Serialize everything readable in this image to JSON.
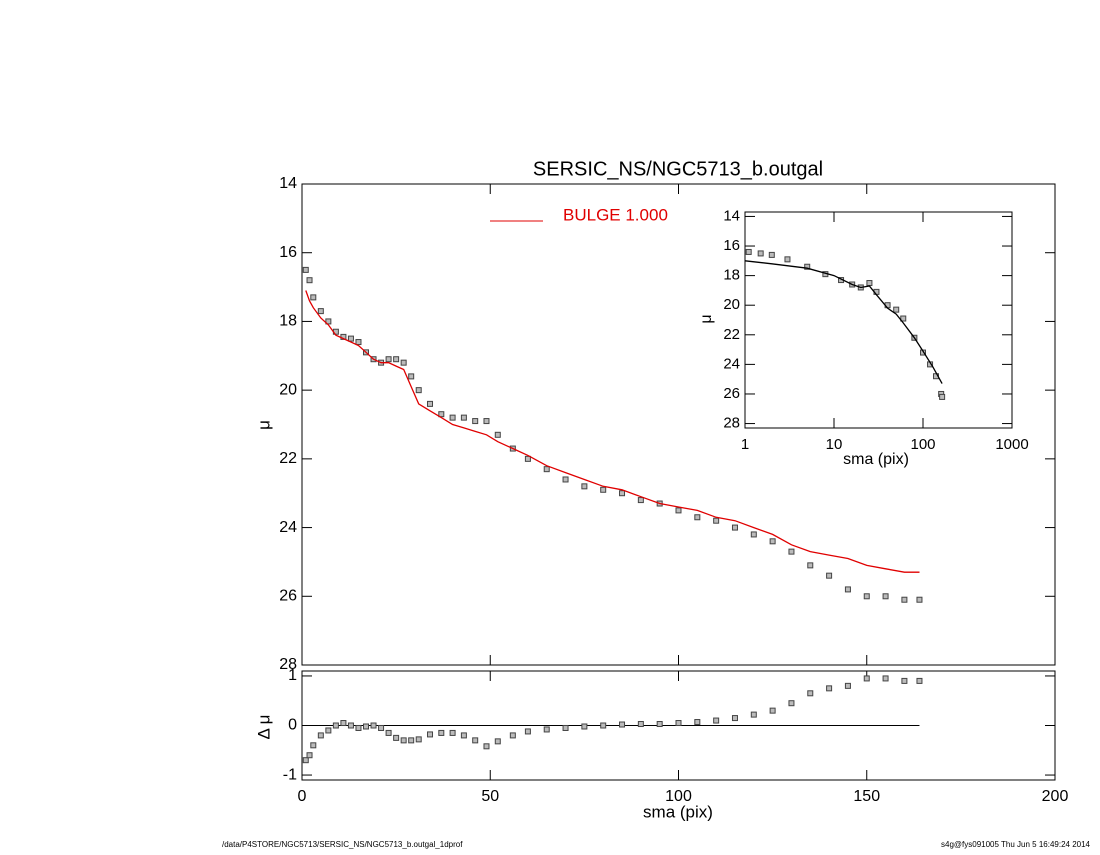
{
  "chart_data": [
    {
      "type": "line",
      "title": "SERSIC_NS/NGC5713_b.outgal",
      "y_label": "μ",
      "x": [
        1,
        2,
        3,
        5,
        7,
        9,
        11,
        13,
        15,
        17,
        19,
        21,
        23,
        25,
        27,
        29,
        31,
        34,
        37,
        40,
        43,
        46,
        49,
        52,
        56,
        60,
        65,
        70,
        75,
        80,
        85,
        90,
        95,
        100,
        105,
        110,
        115,
        120,
        125,
        130,
        135,
        140,
        145,
        150,
        155,
        160,
        164
      ],
      "series": [
        {
          "color": "#808080",
          "marker": "square",
          "values": [
            16.5,
            16.8,
            17.3,
            17.7,
            18.0,
            18.3,
            18.45,
            18.5,
            18.6,
            18.9,
            19.1,
            19.2,
            19.1,
            19.1,
            19.2,
            19.6,
            20.0,
            20.4,
            20.7,
            20.8,
            20.8,
            20.9,
            20.9,
            21.3,
            21.7,
            22.0,
            22.3,
            22.6,
            22.8,
            22.9,
            23.0,
            23.2,
            23.3,
            23.5,
            23.7,
            23.8,
            24.0,
            24.2,
            24.4,
            24.7,
            25.1,
            25.4,
            25.8,
            26.0,
            26.0,
            26.1,
            26.1
          ]
        },
        {
          "name": "BULGE  1.000",
          "color": "#e00000",
          "values": [
            17.1,
            17.4,
            17.6,
            17.9,
            18.1,
            18.4,
            18.5,
            18.6,
            18.7,
            18.9,
            19.1,
            19.2,
            19.2,
            19.3,
            19.4,
            19.9,
            20.4,
            20.6,
            20.8,
            21.0,
            21.1,
            21.2,
            21.3,
            21.5,
            21.7,
            21.9,
            22.2,
            22.4,
            22.6,
            22.8,
            22.9,
            23.1,
            23.3,
            23.4,
            23.5,
            23.7,
            23.8,
            24.0,
            24.2,
            24.5,
            24.7,
            24.8,
            24.9,
            25.1,
            25.2,
            25.3,
            25.3
          ]
        }
      ],
      "xlim": [
        0,
        200
      ],
      "ylim": [
        28,
        14
      ],
      "yticks": [
        14,
        16,
        18,
        20,
        22,
        24,
        26,
        28
      ]
    },
    {
      "type": "scatter",
      "y_label": "Δ μ",
      "x_label": "sma (pix)",
      "x": [
        1,
        2,
        3,
        5,
        7,
        9,
        11,
        13,
        15,
        17,
        19,
        21,
        23,
        25,
        27,
        29,
        31,
        34,
        37,
        40,
        43,
        46,
        49,
        52,
        56,
        60,
        65,
        70,
        75,
        80,
        85,
        90,
        95,
        100,
        105,
        110,
        115,
        120,
        125,
        130,
        135,
        140,
        145,
        150,
        155,
        160,
        164
      ],
      "series": [
        {
          "color": "#808080",
          "marker": "square",
          "values": [
            -0.7,
            -0.6,
            -0.4,
            -0.2,
            -0.1,
            0,
            0.05,
            0,
            -0.05,
            -0.02,
            0,
            -0.05,
            -0.15,
            -0.25,
            -0.3,
            -0.3,
            -0.28,
            -0.18,
            -0.15,
            -0.15,
            -0.2,
            -0.3,
            -0.42,
            -0.32,
            -0.2,
            -0.12,
            -0.08,
            -0.05,
            -0.02,
            0,
            0.02,
            0.03,
            0.03,
            0.05,
            0.07,
            0.1,
            0.15,
            0.22,
            0.3,
            0.45,
            0.65,
            0.75,
            0.8,
            0.95,
            0.95,
            0.9,
            0.9
          ]
        }
      ],
      "xlim": [
        0,
        200
      ],
      "ylim": [
        -1.1,
        1.1
      ],
      "xticks": [
        0,
        50,
        100,
        150,
        200
      ],
      "yticks": [
        -1,
        0,
        1
      ]
    },
    {
      "type": "line",
      "y_label": "μ",
      "x_label": "sma (pix)",
      "xscale": "log",
      "series": [
        {
          "color": "#808080",
          "marker": "square",
          "x": [
            1.1,
            1.5,
            2,
            3,
            5,
            8,
            12,
            16,
            20,
            25,
            30,
            40,
            50,
            60,
            80,
            100,
            120,
            140,
            160,
            164
          ],
          "values": [
            16.4,
            16.5,
            16.6,
            16.9,
            17.4,
            17.9,
            18.3,
            18.6,
            18.8,
            18.5,
            19.1,
            20.0,
            20.3,
            20.9,
            22.2,
            23.2,
            24.0,
            24.8,
            26.0,
            26.2
          ]
        },
        {
          "color": "#000000",
          "x": [
            1,
            2,
            5,
            10,
            16,
            20,
            25,
            30,
            40,
            50,
            60,
            80,
            100,
            130,
            164
          ],
          "values": [
            17.0,
            17.2,
            17.5,
            18.0,
            18.6,
            18.8,
            18.7,
            19.3,
            20.2,
            20.6,
            21.2,
            22.2,
            23.1,
            24.2,
            25.3
          ]
        }
      ],
      "xlim": [
        1,
        1000
      ],
      "ylim": [
        28.3,
        13.7
      ],
      "xticks": [
        1,
        10,
        100,
        1000
      ],
      "yticks": [
        14,
        16,
        18,
        20,
        22,
        24,
        26,
        28
      ]
    }
  ],
  "footer_left": "/data/P4STORE/NGC5713/SERSIC_NS/NGC5713_b.outgal_1dprof",
  "footer_right": "s4g@fys091005  Thu Jun  5 16:49:24 2014"
}
